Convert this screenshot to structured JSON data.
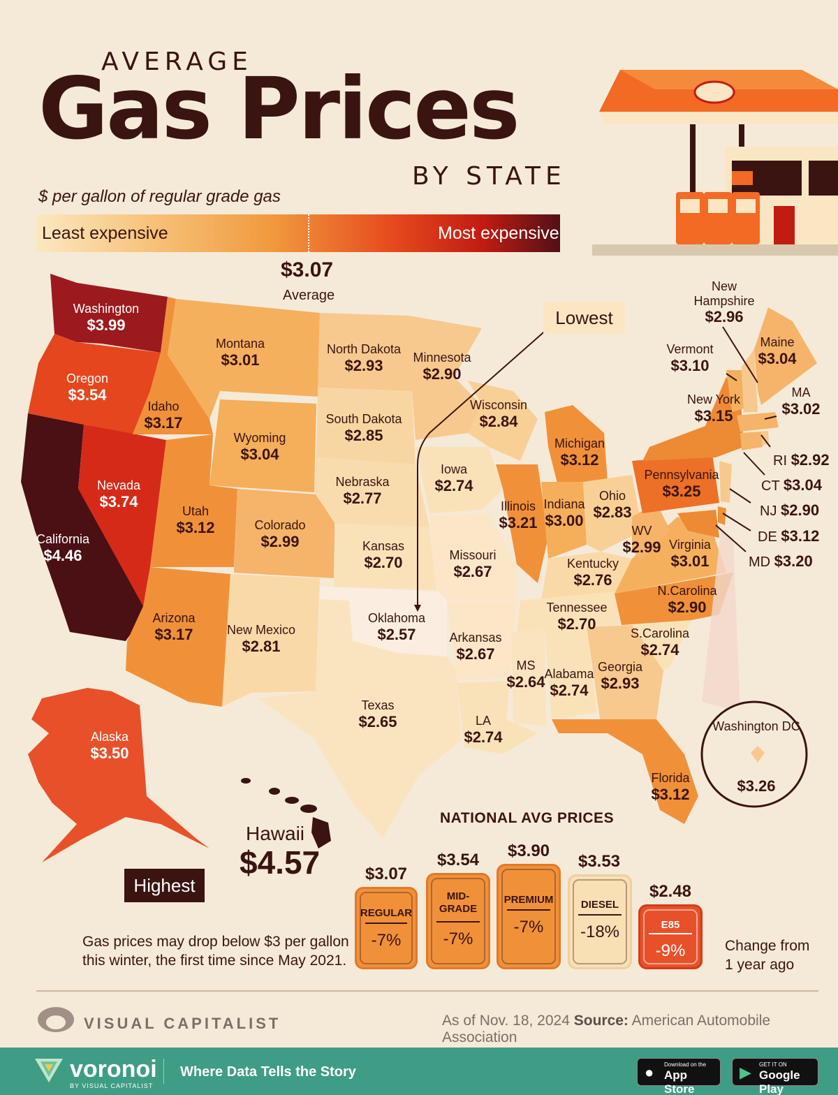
{
  "title": {
    "top": "AVERAGE",
    "main": "Gas Prices",
    "bottom": "BY STATE",
    "subtitle": "$ per gallon of regular grade gas"
  },
  "legend": {
    "least": "Least expensive",
    "most": "Most expensive",
    "average_value": "$3.07",
    "average_label": "Average"
  },
  "states": [
    {
      "name": "Washington",
      "price": "$3.99"
    },
    {
      "name": "Oregon",
      "price": "$3.54"
    },
    {
      "name": "California",
      "price": "$4.46"
    },
    {
      "name": "Nevada",
      "price": "$3.74"
    },
    {
      "name": "Idaho",
      "price": "$3.17"
    },
    {
      "name": "Montana",
      "price": "$3.01"
    },
    {
      "name": "Wyoming",
      "price": "$3.04"
    },
    {
      "name": "Utah",
      "price": "$3.12"
    },
    {
      "name": "Colorado",
      "price": "$2.99"
    },
    {
      "name": "Arizona",
      "price": "$3.17"
    },
    {
      "name": "New Mexico",
      "price": "$2.81"
    },
    {
      "name": "North Dakota",
      "price": "$2.93"
    },
    {
      "name": "South Dakota",
      "price": "$2.85"
    },
    {
      "name": "Nebraska",
      "price": "$2.77"
    },
    {
      "name": "Kansas",
      "price": "$2.70"
    },
    {
      "name": "Oklahoma",
      "price": "$2.57"
    },
    {
      "name": "Texas",
      "price": "$2.65"
    },
    {
      "name": "Minnesota",
      "price": "$2.90"
    },
    {
      "name": "Iowa",
      "price": "$2.74"
    },
    {
      "name": "Missouri",
      "price": "$2.67"
    },
    {
      "name": "Arkansas",
      "price": "$2.67"
    },
    {
      "name": "LA",
      "price": "$2.74"
    },
    {
      "name": "Wisconsin",
      "price": "$2.84"
    },
    {
      "name": "Illinois",
      "price": "$3.21"
    },
    {
      "name": "Michigan",
      "price": "$3.12"
    },
    {
      "name": "Indiana",
      "price": "$3.00"
    },
    {
      "name": "Ohio",
      "price": "$2.83"
    },
    {
      "name": "Kentucky",
      "price": "$2.76"
    },
    {
      "name": "Tennessee",
      "price": "$2.70"
    },
    {
      "name": "MS",
      "price": "$2.64"
    },
    {
      "name": "Alabama",
      "price": "$2.74"
    },
    {
      "name": "Georgia",
      "price": "$2.93"
    },
    {
      "name": "Florida",
      "price": "$3.12"
    },
    {
      "name": "S.Carolina",
      "price": "$2.74"
    },
    {
      "name": "N.Carolina",
      "price": "$2.90"
    },
    {
      "name": "Virginia",
      "price": "$3.01"
    },
    {
      "name": "WV",
      "price": "$2.99"
    },
    {
      "name": "Pennsylvania",
      "price": "$3.25"
    },
    {
      "name": "New York",
      "price": "$3.15"
    },
    {
      "name": "Vermont",
      "price": "$3.10"
    },
    {
      "name": "New Hampshire",
      "price": "$2.96"
    },
    {
      "name": "Maine",
      "price": "$3.04"
    },
    {
      "name": "MA",
      "price": "$3.02"
    },
    {
      "name": "RI",
      "price": "$2.92"
    },
    {
      "name": "CT",
      "price": "$3.04"
    },
    {
      "name": "NJ",
      "price": "$2.90"
    },
    {
      "name": "DE",
      "price": "$3.12"
    },
    {
      "name": "MD",
      "price": "$3.20"
    },
    {
      "name": "Alaska",
      "price": "$3.50"
    },
    {
      "name": "Hawaii",
      "price": "$4.57"
    },
    {
      "name": "Washington DC",
      "price": "$3.26"
    }
  ],
  "callouts": {
    "lowest": "Lowest",
    "highest": "Highest"
  },
  "national": {
    "title": "NATIONAL AVG PRICES",
    "grades": [
      {
        "name": "REGULAR",
        "price": "$3.07",
        "change": "-7%",
        "color": "#f0913a"
      },
      {
        "name": "MID-\nGRADE",
        "price": "$3.54",
        "change": "-7%",
        "color": "#f0913a"
      },
      {
        "name": "PREMIUM",
        "price": "$3.90",
        "change": "-7%",
        "color": "#f0913a"
      },
      {
        "name": "DIESEL",
        "price": "$3.53",
        "change": "-18%",
        "color": "#f8e0b4"
      },
      {
        "name": "E85",
        "price": "$2.48",
        "change": "-9%",
        "color": "#e8502a"
      }
    ],
    "change_note": "Change from\n1 year ago"
  },
  "note": "Gas prices may drop below $3 per gallon\nthis winter, the first time since May 2021.",
  "credits": {
    "brand": "VISUAL CAPITALIST",
    "asof": "As of Nov. 18, 2024",
    "source_label": "Source:",
    "source": "American Automobile Association"
  },
  "footer": {
    "logo": "voronoi",
    "byline": "BY VISUAL CAPITALIST",
    "tagline": "Where Data Tells the Story",
    "appstore_small": "Download on the",
    "appstore": "App Store",
    "googleplay_small": "GET IT ON",
    "googleplay": "Google Play"
  },
  "colors": {
    "background": "#f5ead8",
    "text": "#3a1410",
    "footer": "#3e9d84"
  }
}
